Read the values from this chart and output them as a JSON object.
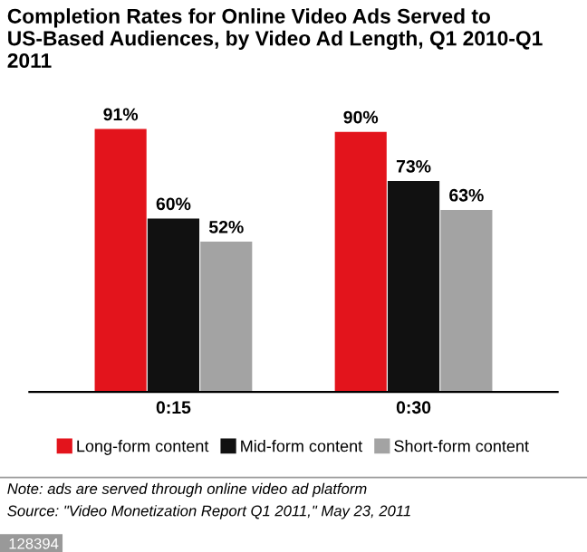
{
  "chart_data": {
    "type": "bar",
    "title": "Completion Rates for Online Video Ads Served to US-Based Audiences, by Video Ad Length, Q1 2010-Q1 2011",
    "categories": [
      "0:15",
      "0:30"
    ],
    "series": [
      {
        "name": "Long-form content",
        "color": "#e3141c",
        "values": [
          91,
          90
        ],
        "value_labels": [
          "91%",
          "90%"
        ]
      },
      {
        "name": "Mid-form content",
        "color": "#111111",
        "values": [
          60,
          73
        ],
        "value_labels": [
          "60%",
          "73%"
        ]
      },
      {
        "name": "Short-form content",
        "color": "#a3a3a3",
        "values": [
          52,
          63
        ],
        "value_labels": [
          "52%",
          "63%"
        ]
      }
    ],
    "legend": "bottom",
    "grid": false,
    "annotations": [
      "Note: ads are served through online video ad platform",
      "Source: \"Video Monetization Report Q1 2011,\" May 23, 2011",
      "128394"
    ]
  }
}
